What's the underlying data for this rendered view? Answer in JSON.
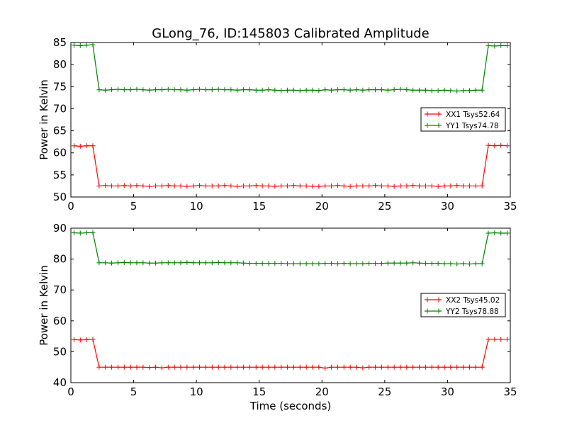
{
  "chart_data": [
    {
      "type": "line",
      "title": "GLong_76, ID:145803 Calibrated Amplitude",
      "xlabel": "",
      "ylabel": "Power in Kelvin",
      "xlim": [
        0,
        35
      ],
      "ylim": [
        50,
        85
      ],
      "xticks": [
        0,
        5,
        10,
        15,
        20,
        25,
        30,
        35
      ],
      "yticks": [
        50,
        55,
        60,
        65,
        70,
        75,
        80,
        85
      ],
      "legend_position": "right",
      "x_start": 0.25,
      "x_step": 0.5,
      "series": [
        {
          "name": "XX1 Tsys52.64",
          "color": "#ff0000",
          "values": [
            61.6,
            61.5,
            61.6,
            61.6,
            52.5,
            52.6,
            52.5,
            52.5,
            52.6,
            52.5,
            52.6,
            52.5,
            52.4,
            52.5,
            52.5,
            52.6,
            52.5,
            52.5,
            52.4,
            52.5,
            52.6,
            52.5,
            52.5,
            52.5,
            52.6,
            52.5,
            52.4,
            52.5,
            52.5,
            52.6,
            52.5,
            52.5,
            52.4,
            52.5,
            52.5,
            52.6,
            52.5,
            52.5,
            52.4,
            52.4,
            52.5,
            52.5,
            52.6,
            52.5,
            52.4,
            52.5,
            52.5,
            52.5,
            52.6,
            52.5,
            52.5,
            52.4,
            52.5,
            52.5,
            52.6,
            52.5,
            52.5,
            52.5,
            52.4,
            52.5,
            52.5,
            52.6,
            52.5,
            52.5,
            52.5,
            52.5,
            61.7,
            61.6,
            61.7,
            61.6
          ]
        },
        {
          "name": "YY1 Tsys74.78",
          "color": "#008000",
          "values": [
            84.4,
            84.3,
            84.4,
            84.5,
            74.3,
            74.2,
            74.3,
            74.4,
            74.3,
            74.3,
            74.4,
            74.3,
            74.2,
            74.3,
            74.3,
            74.4,
            74.3,
            74.3,
            74.2,
            74.3,
            74.4,
            74.3,
            74.3,
            74.4,
            74.3,
            74.3,
            74.2,
            74.3,
            74.3,
            74.2,
            74.2,
            74.3,
            74.2,
            74.1,
            74.2,
            74.2,
            74.1,
            74.2,
            74.2,
            74.1,
            74.3,
            74.2,
            74.3,
            74.3,
            74.2,
            74.3,
            74.2,
            74.3,
            74.3,
            74.3,
            74.2,
            74.3,
            74.4,
            74.3,
            74.2,
            74.2,
            74.2,
            74.1,
            74.1,
            74.2,
            74.1,
            74.0,
            74.1,
            74.1,
            74.2,
            74.2,
            84.3,
            84.2,
            84.3,
            84.3
          ]
        }
      ]
    },
    {
      "type": "line",
      "title": "",
      "xlabel": "Time (seconds)",
      "ylabel": "Power in Kelvin",
      "xlim": [
        0,
        35
      ],
      "ylim": [
        40,
        90
      ],
      "xticks": [
        0,
        5,
        10,
        15,
        20,
        25,
        30,
        35
      ],
      "yticks": [
        40,
        50,
        60,
        70,
        80,
        90
      ],
      "legend_position": "right",
      "x_start": 0.25,
      "x_step": 0.5,
      "series": [
        {
          "name": "XX2 Tsys45.02",
          "color": "#ff0000",
          "values": [
            53.9,
            53.8,
            53.9,
            54.0,
            45.0,
            45.0,
            45.0,
            45.0,
            45.0,
            45.0,
            45.0,
            45.0,
            44.9,
            45.0,
            44.8,
            45.0,
            45.0,
            45.0,
            45.0,
            45.0,
            45.0,
            45.0,
            45.0,
            45.0,
            45.0,
            45.0,
            45.0,
            45.0,
            45.0,
            45.0,
            45.0,
            45.0,
            45.0,
            45.0,
            45.0,
            45.0,
            45.0,
            45.0,
            45.0,
            45.0,
            44.7,
            45.0,
            45.0,
            45.0,
            45.0,
            45.0,
            44.8,
            45.0,
            45.0,
            45.0,
            45.0,
            45.0,
            45.0,
            45.0,
            45.0,
            45.0,
            45.0,
            45.0,
            45.0,
            45.0,
            45.0,
            45.0,
            45.0,
            45.0,
            45.0,
            45.0,
            54.0,
            54.0,
            54.0,
            54.0
          ]
        },
        {
          "name": "YY2 Tsys78.88",
          "color": "#008000",
          "values": [
            88.5,
            88.4,
            88.5,
            88.6,
            78.8,
            78.8,
            78.7,
            78.8,
            78.9,
            78.8,
            78.8,
            78.8,
            78.7,
            78.7,
            78.8,
            78.8,
            78.8,
            78.8,
            78.9,
            78.8,
            78.8,
            78.8,
            78.8,
            78.9,
            78.8,
            78.8,
            78.8,
            78.7,
            78.6,
            78.6,
            78.6,
            78.6,
            78.6,
            78.6,
            78.5,
            78.5,
            78.5,
            78.5,
            78.5,
            78.5,
            78.6,
            78.6,
            78.5,
            78.6,
            78.5,
            78.5,
            78.5,
            78.6,
            78.6,
            78.6,
            78.7,
            78.7,
            78.7,
            78.7,
            78.8,
            78.7,
            78.6,
            78.6,
            78.6,
            78.5,
            78.5,
            78.4,
            78.5,
            78.4,
            78.5,
            78.5,
            88.4,
            88.5,
            88.4,
            88.4
          ]
        }
      ]
    }
  ]
}
